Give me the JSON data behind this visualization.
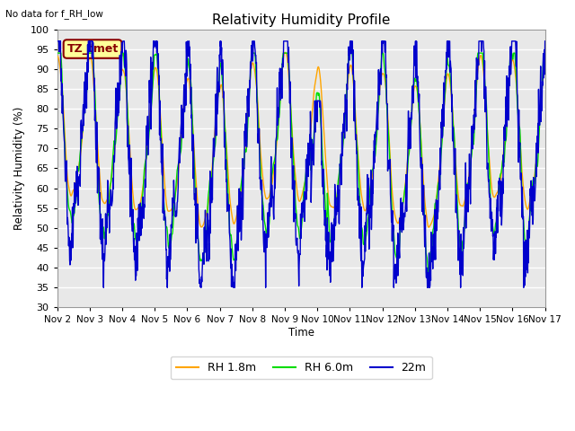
{
  "title": "Relativity Humidity Profile",
  "top_left_text": "No data for f_RH_low",
  "ylabel": "Relativity Humidity (%)",
  "xlabel": "Time",
  "annotation_box": "TZ_tmet",
  "ylim": [
    30,
    100
  ],
  "yticks": [
    30,
    35,
    40,
    45,
    50,
    55,
    60,
    65,
    70,
    75,
    80,
    85,
    90,
    95,
    100
  ],
  "xtick_labels": [
    "Nov 2",
    "Nov 3",
    "Nov 4",
    "Nov 5",
    "Nov 6",
    "Nov 7",
    "Nov 8",
    "Nov 9",
    "Nov 10",
    "Nov 11",
    "Nov 12",
    "Nov 13",
    "Nov 14",
    "Nov 15",
    "Nov 16",
    "Nov 17"
  ],
  "legend_labels": [
    "RH 1.8m",
    "RH 6.0m",
    "22m"
  ],
  "colors": {
    "rh18": "#FFA500",
    "rh60": "#00DD00",
    "rh22": "#0000CC",
    "bg_plot": "#E8E8E8",
    "bg_fig": "#FFFFFF",
    "grid": "#FFFFFF",
    "annotation_bg": "#FFFF99",
    "annotation_border": "#880000",
    "annotation_text": "#880000"
  },
  "n_points": 1440,
  "n_days": 15,
  "figsize": [
    6.4,
    4.8
  ],
  "dpi": 100
}
